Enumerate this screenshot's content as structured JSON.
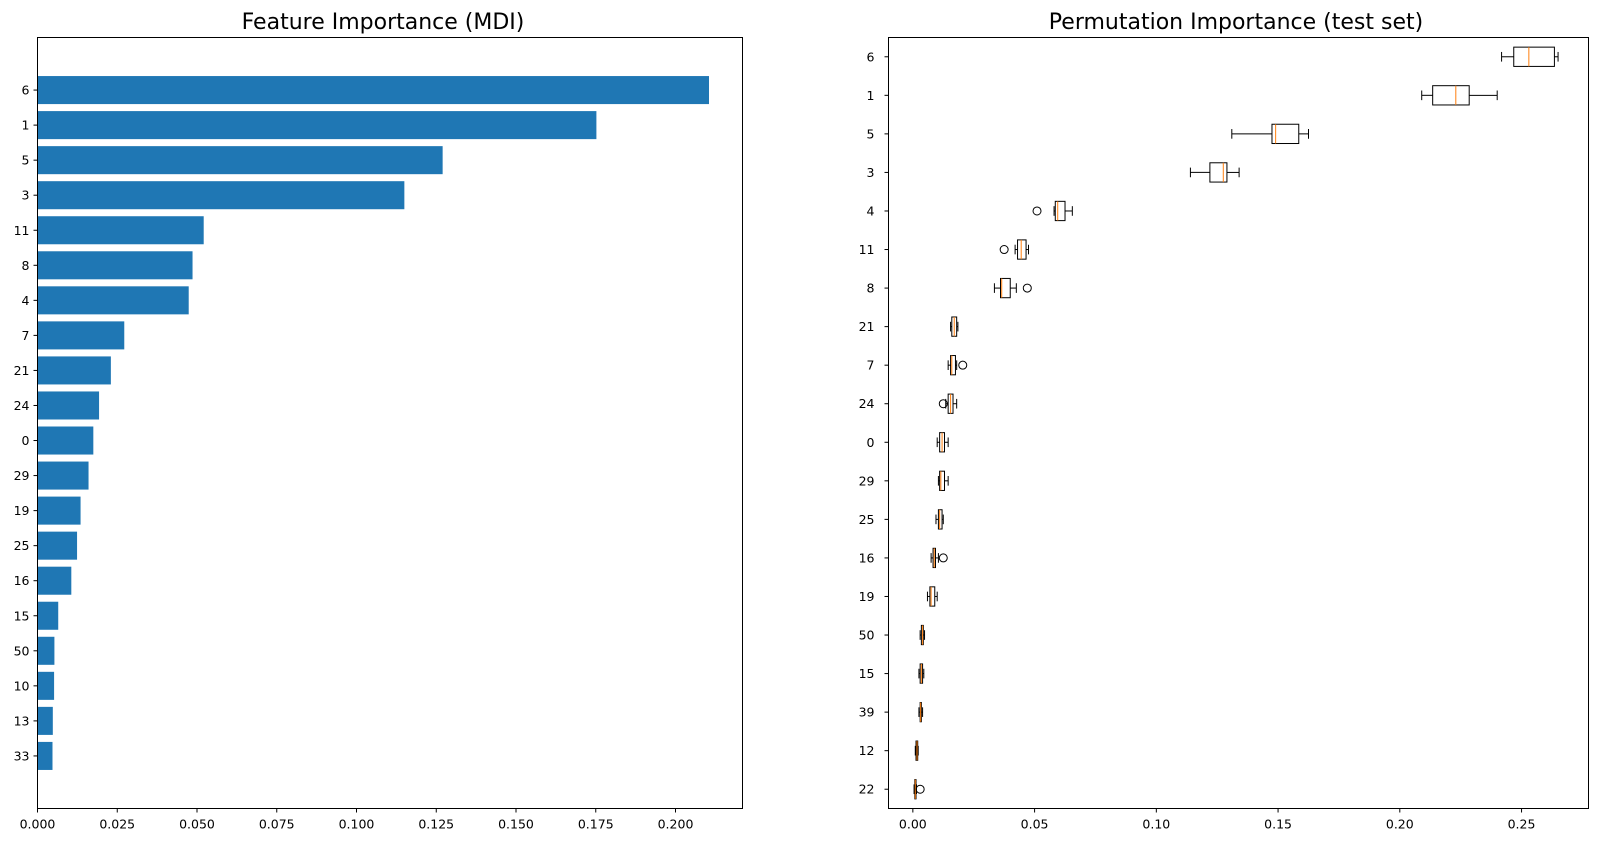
{
  "chart_data": [
    {
      "type": "bar",
      "orientation": "horizontal",
      "title": "Feature Importance (MDI)",
      "xlabel": "",
      "ylabel": "",
      "xlim": [
        0,
        0.221
      ],
      "xticks": [
        "0.000",
        "0.025",
        "0.050",
        "0.075",
        "0.100",
        "0.125",
        "0.150",
        "0.175",
        "0.200"
      ],
      "grid": false,
      "color": "#1f77b4",
      "categories": [
        "6",
        "1",
        "5",
        "3",
        "11",
        "8",
        "4",
        "7",
        "21",
        "24",
        "0",
        "29",
        "19",
        "25",
        "16",
        "15",
        "50",
        "10",
        "13",
        "33"
      ],
      "values": [
        0.2105,
        0.1752,
        0.127,
        0.115,
        0.0521,
        0.0486,
        0.0474,
        0.0272,
        0.023,
        0.0193,
        0.0175,
        0.016,
        0.0135,
        0.0124,
        0.0106,
        0.0065,
        0.0053,
        0.0052,
        0.0048,
        0.0047
      ]
    },
    {
      "type": "box",
      "orientation": "horizontal",
      "title": "Permutation Importance (test set)",
      "xlabel": "",
      "ylabel": "",
      "xlim": [
        -0.01,
        0.2775
      ],
      "xticks": [
        "0.00",
        "0.05",
        "0.10",
        "0.15",
        "0.20",
        "0.25"
      ],
      "grid": false,
      "box_color": "#000000",
      "median_color": "#ff7f0e",
      "categories": [
        "6",
        "1",
        "5",
        "3",
        "4",
        "11",
        "8",
        "21",
        "7",
        "24",
        "0",
        "29",
        "25",
        "16",
        "19",
        "50",
        "15",
        "39",
        "12",
        "22"
      ],
      "boxes": [
        {
          "whisker_low": 0.2418,
          "q1": 0.2468,
          "median": 0.253,
          "q3": 0.2635,
          "whisker_high": 0.265,
          "outliers": []
        },
        {
          "whisker_low": 0.209,
          "q1": 0.2135,
          "median": 0.223,
          "q3": 0.2285,
          "whisker_high": 0.24,
          "outliers": []
        },
        {
          "whisker_low": 0.131,
          "q1": 0.1475,
          "median": 0.149,
          "q3": 0.1585,
          "whisker_high": 0.1625,
          "outliers": []
        },
        {
          "whisker_low": 0.114,
          "q1": 0.122,
          "median": 0.1275,
          "q3": 0.129,
          "whisker_high": 0.134,
          "outliers": []
        },
        {
          "whisker_low": 0.058,
          "q1": 0.0585,
          "median": 0.0595,
          "q3": 0.0625,
          "whisker_high": 0.0655,
          "outliers": [
            0.051
          ]
        },
        {
          "whisker_low": 0.042,
          "q1": 0.043,
          "median": 0.0445,
          "q3": 0.0465,
          "whisker_high": 0.0475,
          "outliers": [
            0.0375
          ]
        },
        {
          "whisker_low": 0.0335,
          "q1": 0.036,
          "median": 0.0365,
          "q3": 0.04,
          "whisker_high": 0.0425,
          "outliers": [
            0.047
          ]
        },
        {
          "whisker_low": 0.0155,
          "q1": 0.016,
          "median": 0.017,
          "q3": 0.018,
          "whisker_high": 0.0185,
          "outliers": []
        },
        {
          "whisker_low": 0.0145,
          "q1": 0.0155,
          "median": 0.016,
          "q3": 0.0175,
          "whisker_high": 0.018,
          "outliers": [
            0.0205
          ]
        },
        {
          "whisker_low": 0.0135,
          "q1": 0.0145,
          "median": 0.0155,
          "q3": 0.0165,
          "whisker_high": 0.018,
          "outliers": [
            0.0125
          ]
        },
        {
          "whisker_low": 0.01,
          "q1": 0.011,
          "median": 0.012,
          "q3": 0.013,
          "whisker_high": 0.0145,
          "outliers": []
        },
        {
          "whisker_low": 0.0105,
          "q1": 0.011,
          "median": 0.0115,
          "q3": 0.013,
          "whisker_high": 0.0145,
          "outliers": []
        },
        {
          "whisker_low": 0.0095,
          "q1": 0.0105,
          "median": 0.011,
          "q3": 0.012,
          "whisker_high": 0.0125,
          "outliers": []
        },
        {
          "whisker_low": 0.0075,
          "q1": 0.0083,
          "median": 0.0088,
          "q3": 0.0093,
          "whisker_high": 0.0105,
          "outliers": [
            0.0125
          ]
        },
        {
          "whisker_low": 0.006,
          "q1": 0.007,
          "median": 0.0075,
          "q3": 0.009,
          "whisker_high": 0.01,
          "outliers": []
        },
        {
          "whisker_low": 0.003,
          "q1": 0.0035,
          "median": 0.004,
          "q3": 0.0043,
          "whisker_high": 0.0048,
          "outliers": []
        },
        {
          "whisker_low": 0.0025,
          "q1": 0.003,
          "median": 0.0035,
          "q3": 0.004,
          "whisker_high": 0.0045,
          "outliers": []
        },
        {
          "whisker_low": 0.0025,
          "q1": 0.003,
          "median": 0.0032,
          "q3": 0.0035,
          "whisker_high": 0.004,
          "outliers": []
        },
        {
          "whisker_low": 0.001,
          "q1": 0.0013,
          "median": 0.0017,
          "q3": 0.002,
          "whisker_high": 0.0022,
          "outliers": []
        },
        {
          "whisker_low": 0.0005,
          "q1": 0.0008,
          "median": 0.001,
          "q3": 0.0013,
          "whisker_high": 0.0015,
          "outliers": [
            0.003
          ]
        }
      ]
    }
  ]
}
